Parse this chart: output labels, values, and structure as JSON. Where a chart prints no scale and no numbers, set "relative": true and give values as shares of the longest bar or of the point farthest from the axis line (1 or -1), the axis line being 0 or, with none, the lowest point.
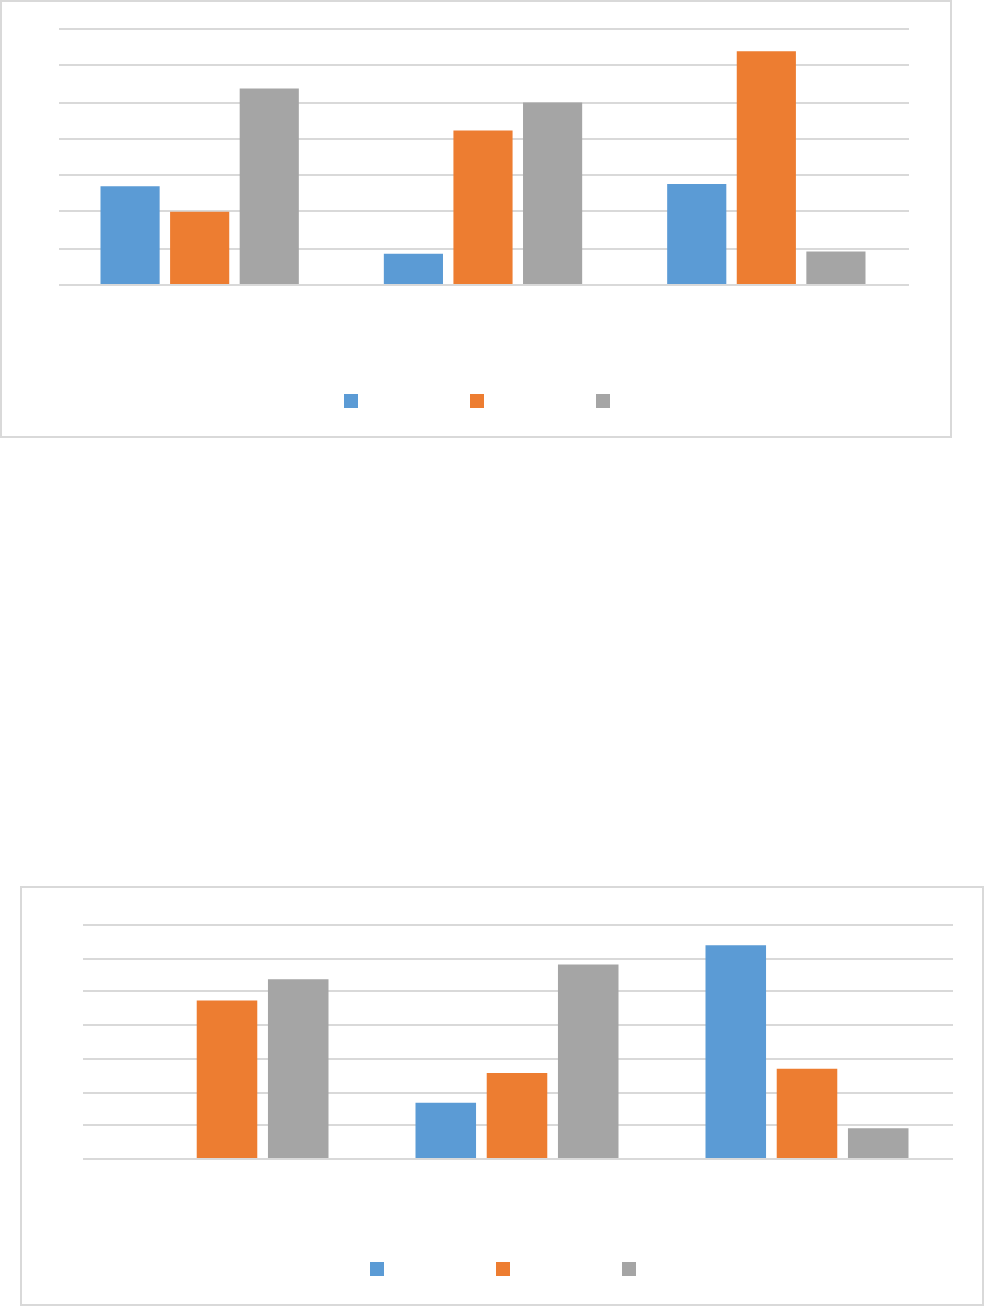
{
  "chart_data": [
    {
      "type": "bar",
      "relative": true,
      "categories": [
        null,
        null,
        null
      ],
      "grid": true,
      "series": [
        {
          "color": "#5b9bd5",
          "values": [
            0.42,
            0.13,
            0.43
          ]
        },
        {
          "color": "#ed7d31",
          "values": [
            0.31,
            0.66,
            1
          ]
        },
        {
          "color": "#a5a5a5",
          "values": [
            0.84,
            0.78,
            0.14
          ]
        }
      ]
    },
    {
      "type": "bar",
      "relative": true,
      "categories": [
        null,
        null,
        null
      ],
      "grid": true,
      "series": [
        {
          "color": "#5b9bd5",
          "values": [
            0,
            0.26,
            1
          ]
        },
        {
          "color": "#ed7d31",
          "values": [
            0.74,
            0.4,
            0.42
          ]
        },
        {
          "color": "#a5a5a5",
          "values": [
            0.84,
            0.91,
            0.14
          ]
        }
      ]
    }
  ]
}
